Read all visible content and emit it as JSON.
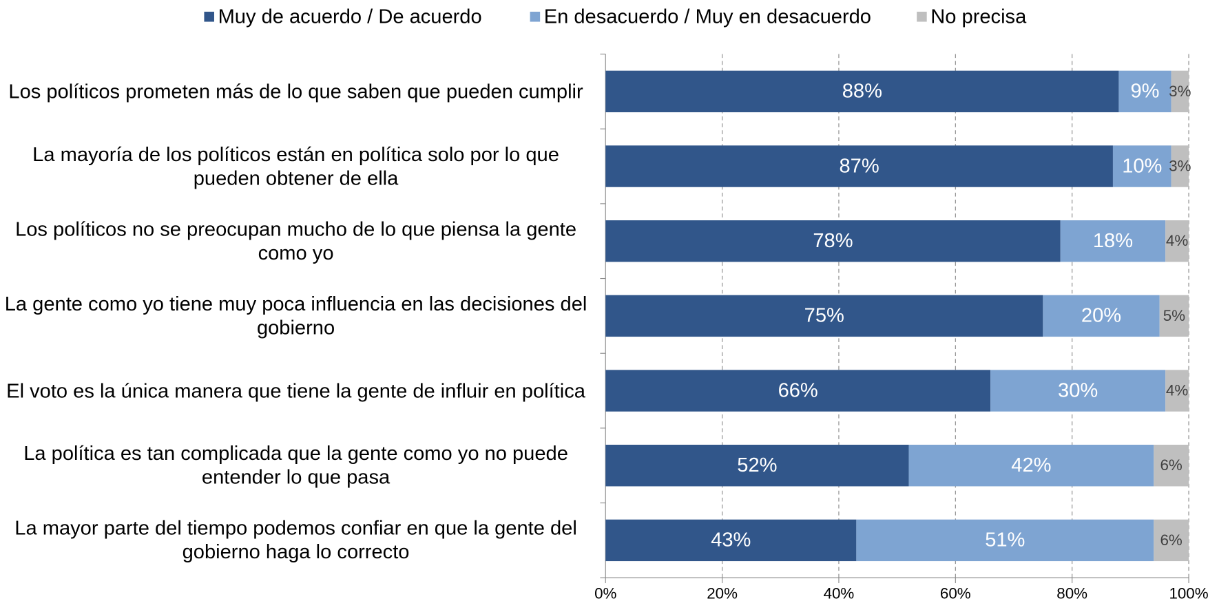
{
  "chart_data": {
    "type": "bar",
    "orientation": "horizontal",
    "stacked": true,
    "categories": [
      "Los políticos prometen más de lo que saben que pueden cumplir",
      "La mayoría de los políticos están en política solo por lo que pueden obtener de ella",
      "Los políticos no se preocupan mucho de lo que piensa la gente como yo",
      "La gente como yo tiene muy poca influencia en las decisiones del gobierno",
      "El voto es la única manera que tiene la gente de influir en política",
      "La política es tan complicada que la gente como yo no puede entender lo que pasa",
      "La mayor parte del tiempo podemos confiar en que la gente del gobierno haga lo correcto"
    ],
    "series": [
      {
        "name": "Muy de acuerdo / De acuerdo",
        "color": "#31568a",
        "label_color": "#ffffff",
        "values": [
          88,
          87,
          78,
          75,
          66,
          52,
          43
        ],
        "value_labels": [
          "88%",
          "87%",
          "78%",
          "75%",
          "66%",
          "52%",
          "43%"
        ]
      },
      {
        "name": "En desacuerdo / Muy en desacuerdo",
        "color": "#7ea4d2",
        "label_color": "#ffffff",
        "values": [
          9,
          10,
          18,
          20,
          30,
          42,
          51
        ],
        "value_labels": [
          "9%",
          "10%",
          "18%",
          "20%",
          "30%",
          "42%",
          "51%"
        ]
      },
      {
        "name": "No precisa",
        "color": "#bfbfbf",
        "label_color": "#404040",
        "values": [
          3,
          3,
          4,
          5,
          4,
          6,
          6
        ],
        "value_labels": [
          "3%",
          "3%",
          "4%",
          "5%",
          "4%",
          "6%",
          "6%"
        ]
      }
    ],
    "xlim": [
      0,
      100
    ],
    "xticks": [
      {
        "value": 0,
        "label": "0%"
      },
      {
        "value": 20,
        "label": "20%"
      },
      {
        "value": 40,
        "label": "40%"
      },
      {
        "value": 60,
        "label": "60%"
      },
      {
        "value": 80,
        "label": "80%"
      },
      {
        "value": 100,
        "label": "100%"
      }
    ],
    "grid": true,
    "legend": "top"
  }
}
